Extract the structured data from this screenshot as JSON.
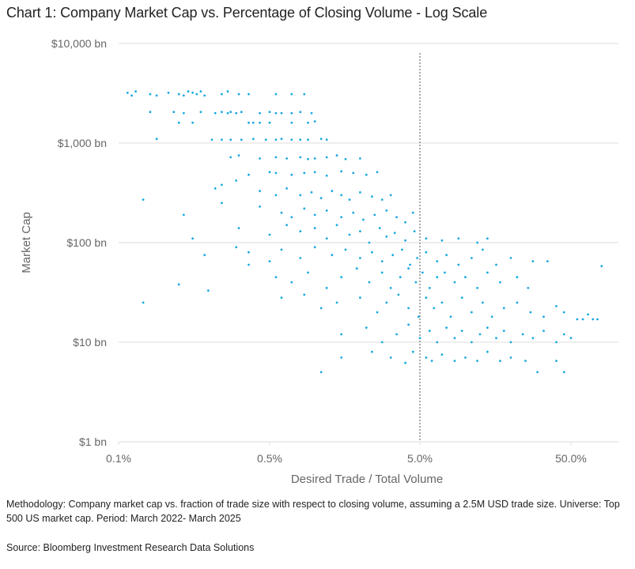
{
  "chart_data": {
    "type": "scatter",
    "title": "Chart 1: Company Market Cap vs. Percentage of Closing Volume  - Log Scale",
    "xlabel": "Desired Trade / Total Volume",
    "ylabel": "Market Cap",
    "x_scale": "log",
    "y_scale": "log",
    "x_ticks": [
      "0.1%",
      "0.5%",
      "5.0%",
      "50.0%"
    ],
    "x_tick_values": [
      0.1,
      0.5,
      5,
      50
    ],
    "y_ticks": [
      "$10,000 bn",
      "$1,000 bn",
      "$100 bn",
      "$10 bn",
      "$1 bn"
    ],
    "y_tick_values": [
      10000,
      1000,
      100,
      10,
      1
    ],
    "xlim": [
      0.1,
      100
    ],
    "ylim": [
      1,
      10000
    ],
    "grid": "horizontal",
    "reference_line_x": 5,
    "point_color": "#1aa9e0",
    "points": [
      [
        0.11,
        3200
      ],
      [
        0.115,
        3000
      ],
      [
        0.12,
        3300
      ],
      [
        0.14,
        3100
      ],
      [
        0.15,
        3000
      ],
      [
        0.17,
        3200
      ],
      [
        0.19,
        3100
      ],
      [
        0.2,
        3000
      ],
      [
        0.21,
        3300
      ],
      [
        0.22,
        3200
      ],
      [
        0.23,
        3100
      ],
      [
        0.24,
        3300
      ],
      [
        0.25,
        3000
      ],
      [
        0.3,
        3100
      ],
      [
        0.32,
        3300
      ],
      [
        0.36,
        3100
      ],
      [
        0.4,
        3100
      ],
      [
        0.55,
        3100
      ],
      [
        0.7,
        3100
      ],
      [
        0.85,
        3100
      ],
      [
        0.14,
        2050
      ],
      [
        0.18,
        2050
      ],
      [
        0.2,
        2000
      ],
      [
        0.24,
        2050
      ],
      [
        0.28,
        2000
      ],
      [
        0.3,
        2050
      ],
      [
        0.32,
        2000
      ],
      [
        0.33,
        2050
      ],
      [
        0.35,
        2000
      ],
      [
        0.37,
        2050
      ],
      [
        0.45,
        2000
      ],
      [
        0.5,
        2050
      ],
      [
        0.55,
        2000
      ],
      [
        0.6,
        2000
      ],
      [
        0.7,
        2000
      ],
      [
        0.8,
        2050
      ],
      [
        0.95,
        2000
      ],
      [
        0.19,
        1600
      ],
      [
        0.22,
        1600
      ],
      [
        0.4,
        1600
      ],
      [
        0.42,
        1600
      ],
      [
        0.45,
        1600
      ],
      [
        0.5,
        1600
      ],
      [
        0.7,
        1600
      ],
      [
        0.9,
        1600
      ],
      [
        1.0,
        1650
      ],
      [
        0.15,
        1100
      ],
      [
        0.27,
        1080
      ],
      [
        0.3,
        1080
      ],
      [
        0.33,
        1080
      ],
      [
        0.37,
        1080
      ],
      [
        0.42,
        1100
      ],
      [
        0.48,
        1080
      ],
      [
        0.55,
        1080
      ],
      [
        0.6,
        1100
      ],
      [
        0.7,
        1080
      ],
      [
        0.8,
        1080
      ],
      [
        0.9,
        1080
      ],
      [
        1.1,
        1100
      ],
      [
        1.2,
        1080
      ],
      [
        0.33,
        720
      ],
      [
        0.36,
        750
      ],
      [
        0.45,
        700
      ],
      [
        0.55,
        720
      ],
      [
        0.65,
        700
      ],
      [
        0.8,
        720
      ],
      [
        0.9,
        690
      ],
      [
        1.0,
        700
      ],
      [
        1.2,
        720
      ],
      [
        1.4,
        750
      ],
      [
        1.6,
        690
      ],
      [
        2.0,
        700
      ],
      [
        0.4,
        480
      ],
      [
        0.5,
        510
      ],
      [
        0.55,
        500
      ],
      [
        0.7,
        480
      ],
      [
        0.85,
        500
      ],
      [
        1.0,
        510
      ],
      [
        1.2,
        470
      ],
      [
        1.5,
        520
      ],
      [
        1.8,
        500
      ],
      [
        2.2,
        480
      ],
      [
        2.6,
        510
      ],
      [
        0.3,
        380
      ],
      [
        0.35,
        420
      ],
      [
        0.45,
        330
      ],
      [
        0.55,
        300
      ],
      [
        0.65,
        350
      ],
      [
        0.8,
        300
      ],
      [
        0.95,
        320
      ],
      [
        1.1,
        280
      ],
      [
        1.3,
        330
      ],
      [
        1.5,
        300
      ],
      [
        1.7,
        270
      ],
      [
        2.0,
        320
      ],
      [
        2.4,
        290
      ],
      [
        2.8,
        270
      ],
      [
        3.2,
        300
      ],
      [
        0.13,
        270
      ],
      [
        0.28,
        350
      ],
      [
        0.3,
        250
      ],
      [
        0.45,
        230
      ],
      [
        0.6,
        200
      ],
      [
        0.7,
        180
      ],
      [
        0.85,
        220
      ],
      [
        1.0,
        190
      ],
      [
        1.2,
        210
      ],
      [
        1.5,
        180
      ],
      [
        1.8,
        200
      ],
      [
        2.1,
        170
      ],
      [
        2.5,
        190
      ],
      [
        3.0,
        210
      ],
      [
        3.5,
        180
      ],
      [
        4.0,
        160
      ],
      [
        4.5,
        200
      ],
      [
        0.2,
        190
      ],
      [
        0.36,
        140
      ],
      [
        0.5,
        120
      ],
      [
        0.65,
        150
      ],
      [
        0.8,
        130
      ],
      [
        1.0,
        140
      ],
      [
        1.2,
        110
      ],
      [
        1.4,
        150
      ],
      [
        1.7,
        120
      ],
      [
        2.0,
        130
      ],
      [
        2.3,
        100
      ],
      [
        2.7,
        140
      ],
      [
        3.0,
        115
      ],
      [
        3.4,
        125
      ],
      [
        4.0,
        105
      ],
      [
        4.6,
        130
      ],
      [
        5.5,
        110
      ],
      [
        7,
        105
      ],
      [
        9,
        110
      ],
      [
        12,
        100
      ],
      [
        14,
        110
      ],
      [
        0.22,
        110
      ],
      [
        0.25,
        75
      ],
      [
        0.35,
        90
      ],
      [
        0.4,
        80
      ],
      [
        0.5,
        65
      ],
      [
        0.6,
        85
      ],
      [
        0.8,
        70
      ],
      [
        1.0,
        90
      ],
      [
        1.3,
        75
      ],
      [
        1.6,
        85
      ],
      [
        2.0,
        70
      ],
      [
        2.4,
        80
      ],
      [
        2.8,
        65
      ],
      [
        3.3,
        75
      ],
      [
        3.8,
        85
      ],
      [
        4.3,
        60
      ],
      [
        4.8,
        70
      ],
      [
        5.5,
        80
      ],
      [
        6.5,
        65
      ],
      [
        7.5,
        75
      ],
      [
        9,
        60
      ],
      [
        11,
        70
      ],
      [
        13,
        85
      ],
      [
        16,
        60
      ],
      [
        20,
        70
      ],
      [
        28,
        65
      ],
      [
        35,
        65
      ],
      [
        80,
        58
      ],
      [
        0.19,
        38
      ],
      [
        0.26,
        33
      ],
      [
        0.4,
        60
      ],
      [
        0.55,
        45
      ],
      [
        0.7,
        40
      ],
      [
        0.9,
        50
      ],
      [
        1.2,
        35
      ],
      [
        1.5,
        45
      ],
      [
        1.9,
        55
      ],
      [
        2.3,
        40
      ],
      [
        2.8,
        50
      ],
      [
        3.2,
        35
      ],
      [
        3.7,
        45
      ],
      [
        4.2,
        55
      ],
      [
        4.7,
        40
      ],
      [
        5.2,
        50
      ],
      [
        5.8,
        35
      ],
      [
        6.5,
        45
      ],
      [
        7.3,
        50
      ],
      [
        8.5,
        40
      ],
      [
        10,
        45
      ],
      [
        12,
        35
      ],
      [
        14,
        50
      ],
      [
        17,
        40
      ],
      [
        22,
        45
      ],
      [
        26,
        35
      ],
      [
        0.13,
        25
      ],
      [
        0.6,
        28
      ],
      [
        0.85,
        30
      ],
      [
        1.1,
        22
      ],
      [
        1.4,
        25
      ],
      [
        2.0,
        28
      ],
      [
        2.6,
        20
      ],
      [
        3.0,
        25
      ],
      [
        3.6,
        30
      ],
      [
        4.2,
        22
      ],
      [
        4.9,
        18
      ],
      [
        5.5,
        28
      ],
      [
        6.2,
        22
      ],
      [
        7,
        25
      ],
      [
        8,
        18
      ],
      [
        9.5,
        28
      ],
      [
        11,
        20
      ],
      [
        13,
        25
      ],
      [
        15,
        18
      ],
      [
        18,
        22
      ],
      [
        22,
        25
      ],
      [
        27,
        20
      ],
      [
        33,
        18
      ],
      [
        40,
        23
      ],
      [
        45,
        20
      ],
      [
        55,
        17
      ],
      [
        60,
        17
      ],
      [
        65,
        19
      ],
      [
        70,
        17
      ],
      [
        75,
        17
      ],
      [
        1.5,
        12
      ],
      [
        2.2,
        14
      ],
      [
        2.8,
        10
      ],
      [
        3.5,
        12
      ],
      [
        4.2,
        15
      ],
      [
        5,
        11
      ],
      [
        5.8,
        13
      ],
      [
        6.5,
        10
      ],
      [
        7.5,
        14
      ],
      [
        8.5,
        11
      ],
      [
        9.5,
        13
      ],
      [
        11,
        10
      ],
      [
        12.5,
        12
      ],
      [
        14,
        14
      ],
      [
        16,
        11
      ],
      [
        18,
        13
      ],
      [
        20,
        10
      ],
      [
        24,
        12
      ],
      [
        28,
        11
      ],
      [
        33,
        13
      ],
      [
        40,
        10
      ],
      [
        45,
        12
      ],
      [
        50,
        11
      ],
      [
        1.5,
        7
      ],
      [
        2.4,
        8
      ],
      [
        3.2,
        7
      ],
      [
        4.0,
        6.2
      ],
      [
        4.5,
        8
      ],
      [
        5.5,
        7
      ],
      [
        6,
        6.5
      ],
      [
        7,
        7.5
      ],
      [
        8.5,
        6.5
      ],
      [
        10,
        7
      ],
      [
        12,
        6.5
      ],
      [
        14,
        8
      ],
      [
        17,
        6.5
      ],
      [
        20,
        7
      ],
      [
        25,
        6.5
      ],
      [
        30,
        5
      ],
      [
        40,
        6.5
      ],
      [
        45,
        5
      ],
      [
        1.1,
        5
      ]
    ]
  },
  "notes": {
    "methodology": "Methodology:  Company market cap vs. fraction of trade size with respect to closing volume, assuming a 2.5M USD trade size. Universe: Top 500 US market cap. Period: March 2022- March 2025",
    "source": "Source: Bloomberg Investment Research Data Solutions"
  }
}
